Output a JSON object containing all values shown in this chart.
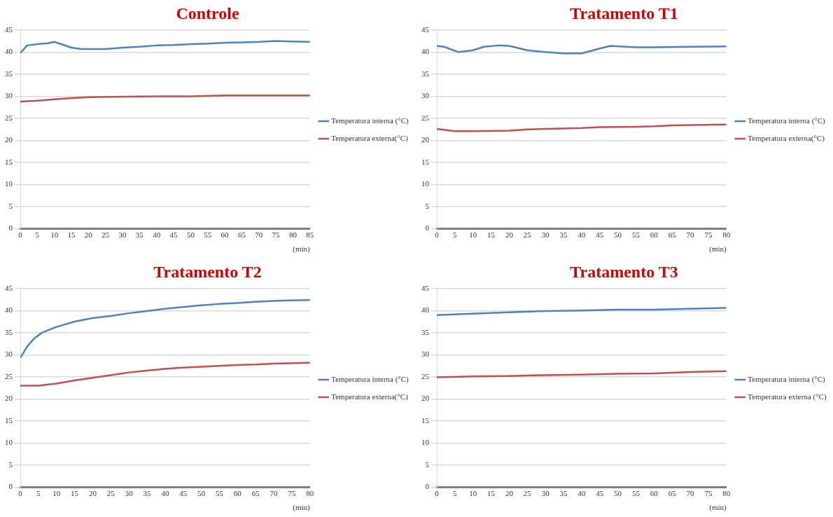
{
  "chart_data": [
    {
      "type": "line",
      "title": "Controle",
      "xlabel": "(min)",
      "xlim": [
        0,
        85
      ],
      "xticks": [
        0,
        5,
        10,
        15,
        20,
        25,
        30,
        35,
        40,
        45,
        50,
        55,
        60,
        65,
        70,
        75,
        80,
        85
      ],
      "ylim": [
        0,
        45
      ],
      "yticks": [
        0,
        5,
        10,
        15,
        20,
        25,
        30,
        35,
        40,
        45
      ],
      "grid": "y",
      "legend": "right",
      "marker": "none",
      "series": [
        {
          "name": "Temperatura interna (°C)",
          "color": "#4f81bd",
          "x": [
            0,
            2,
            5,
            8,
            10,
            12,
            15,
            18,
            25,
            30,
            35,
            40,
            45,
            50,
            55,
            60,
            65,
            70,
            75,
            80,
            85
          ],
          "values": [
            39.8,
            41.5,
            41.8,
            42,
            42.3,
            41.8,
            41,
            40.7,
            40.7,
            41,
            41.2,
            41.5,
            41.6,
            41.8,
            41.9,
            42.1,
            42.2,
            42.3,
            42.5,
            42.4,
            42.3
          ]
        },
        {
          "name": "Temperatura externa(°C)",
          "color": "#c0504d",
          "x": [
            0,
            5,
            10,
            15,
            20,
            30,
            40,
            50,
            60,
            70,
            85
          ],
          "values": [
            28.8,
            29,
            29.3,
            29.6,
            29.8,
            29.9,
            30,
            30,
            30.2,
            30.2,
            30.2
          ]
        }
      ]
    },
    {
      "type": "line",
      "title": "Tratamento T1",
      "xlabel": "(min)",
      "xlim": [
        0,
        80
      ],
      "xticks": [
        0,
        5,
        10,
        15,
        20,
        25,
        30,
        35,
        40,
        45,
        50,
        55,
        60,
        65,
        70,
        75,
        80
      ],
      "ylim": [
        0,
        45
      ],
      "yticks": [
        0,
        5,
        10,
        15,
        20,
        25,
        30,
        35,
        40,
        45
      ],
      "grid": "y",
      "legend": "right",
      "marker": "none",
      "series": [
        {
          "name": "Temperatura interna (°C)",
          "color": "#4f81bd",
          "x": [
            0,
            2,
            6,
            10,
            13,
            17,
            20,
            25,
            30,
            35,
            40,
            45,
            48,
            55,
            60,
            70,
            80
          ],
          "values": [
            41.4,
            41.2,
            40,
            40.4,
            41.2,
            41.5,
            41.4,
            40.4,
            40,
            39.7,
            39.7,
            40.8,
            41.4,
            41.1,
            41.1,
            41.2,
            41.3
          ]
        },
        {
          "name": "Temperatura externa(°C)",
          "color": "#c0504d",
          "x": [
            0,
            5,
            10,
            20,
            25,
            30,
            40,
            45,
            55,
            60,
            65,
            80
          ],
          "values": [
            22.6,
            22.1,
            22.1,
            22.2,
            22.5,
            22.6,
            22.8,
            23,
            23.1,
            23.2,
            23.4,
            23.6
          ]
        }
      ]
    },
    {
      "type": "line",
      "title": "Tratamento T2",
      "xlabel": "(min)",
      "xlim": [
        0,
        80
      ],
      "xticks": [
        0,
        5,
        10,
        15,
        20,
        25,
        30,
        35,
        40,
        45,
        50,
        55,
        60,
        65,
        70,
        75,
        80
      ],
      "ylim": [
        0,
        45
      ],
      "yticks": [
        0,
        5,
        10,
        15,
        20,
        25,
        30,
        35,
        40,
        45
      ],
      "grid": "y",
      "legend": "right",
      "marker": "none",
      "series": [
        {
          "name": "Temperatura interna (°C)",
          "color": "#4f81bd",
          "x": [
            0,
            2,
            4,
            6,
            10,
            15,
            20,
            25,
            30,
            35,
            40,
            45,
            50,
            55,
            60,
            65,
            70,
            75,
            80
          ],
          "values": [
            29.3,
            32,
            33.8,
            35,
            36.3,
            37.5,
            38.3,
            38.8,
            39.4,
            39.9,
            40.4,
            40.8,
            41.2,
            41.5,
            41.7,
            42,
            42.2,
            42.3,
            42.4
          ]
        },
        {
          "name": "Temperatura externa(°C)",
          "color": "#c0504d",
          "x": [
            0,
            5,
            10,
            15,
            20,
            25,
            30,
            35,
            40,
            45,
            50,
            55,
            60,
            65,
            70,
            75,
            80
          ],
          "values": [
            23,
            23,
            23.5,
            24.2,
            24.8,
            25.4,
            26,
            26.4,
            26.8,
            27.1,
            27.3,
            27.5,
            27.7,
            27.8,
            28,
            28.1,
            28.2
          ]
        }
      ]
    },
    {
      "type": "line",
      "title": "Tratamento T3",
      "xlabel": "(min)",
      "xlim": [
        0,
        80
      ],
      "xticks": [
        0,
        5,
        10,
        15,
        20,
        25,
        30,
        35,
        40,
        45,
        50,
        55,
        60,
        65,
        70,
        75,
        80
      ],
      "ylim": [
        0,
        45
      ],
      "yticks": [
        0,
        5,
        10,
        15,
        20,
        25,
        30,
        35,
        40,
        45
      ],
      "grid": "y",
      "legend": "right",
      "marker": "none",
      "series": [
        {
          "name": "Temperatura interna (°C)",
          "color": "#4f81bd",
          "x": [
            0,
            10,
            20,
            30,
            40,
            50,
            60,
            70,
            80
          ],
          "values": [
            39,
            39.3,
            39.6,
            39.9,
            40,
            40.2,
            40.2,
            40.4,
            40.6
          ]
        },
        {
          "name": "Temperatura externa (°C)",
          "color": "#c0504d",
          "x": [
            0,
            10,
            20,
            30,
            40,
            50,
            60,
            70,
            80
          ],
          "values": [
            24.9,
            25.1,
            25.2,
            25.4,
            25.5,
            25.7,
            25.8,
            26.1,
            26.3
          ]
        }
      ]
    }
  ]
}
